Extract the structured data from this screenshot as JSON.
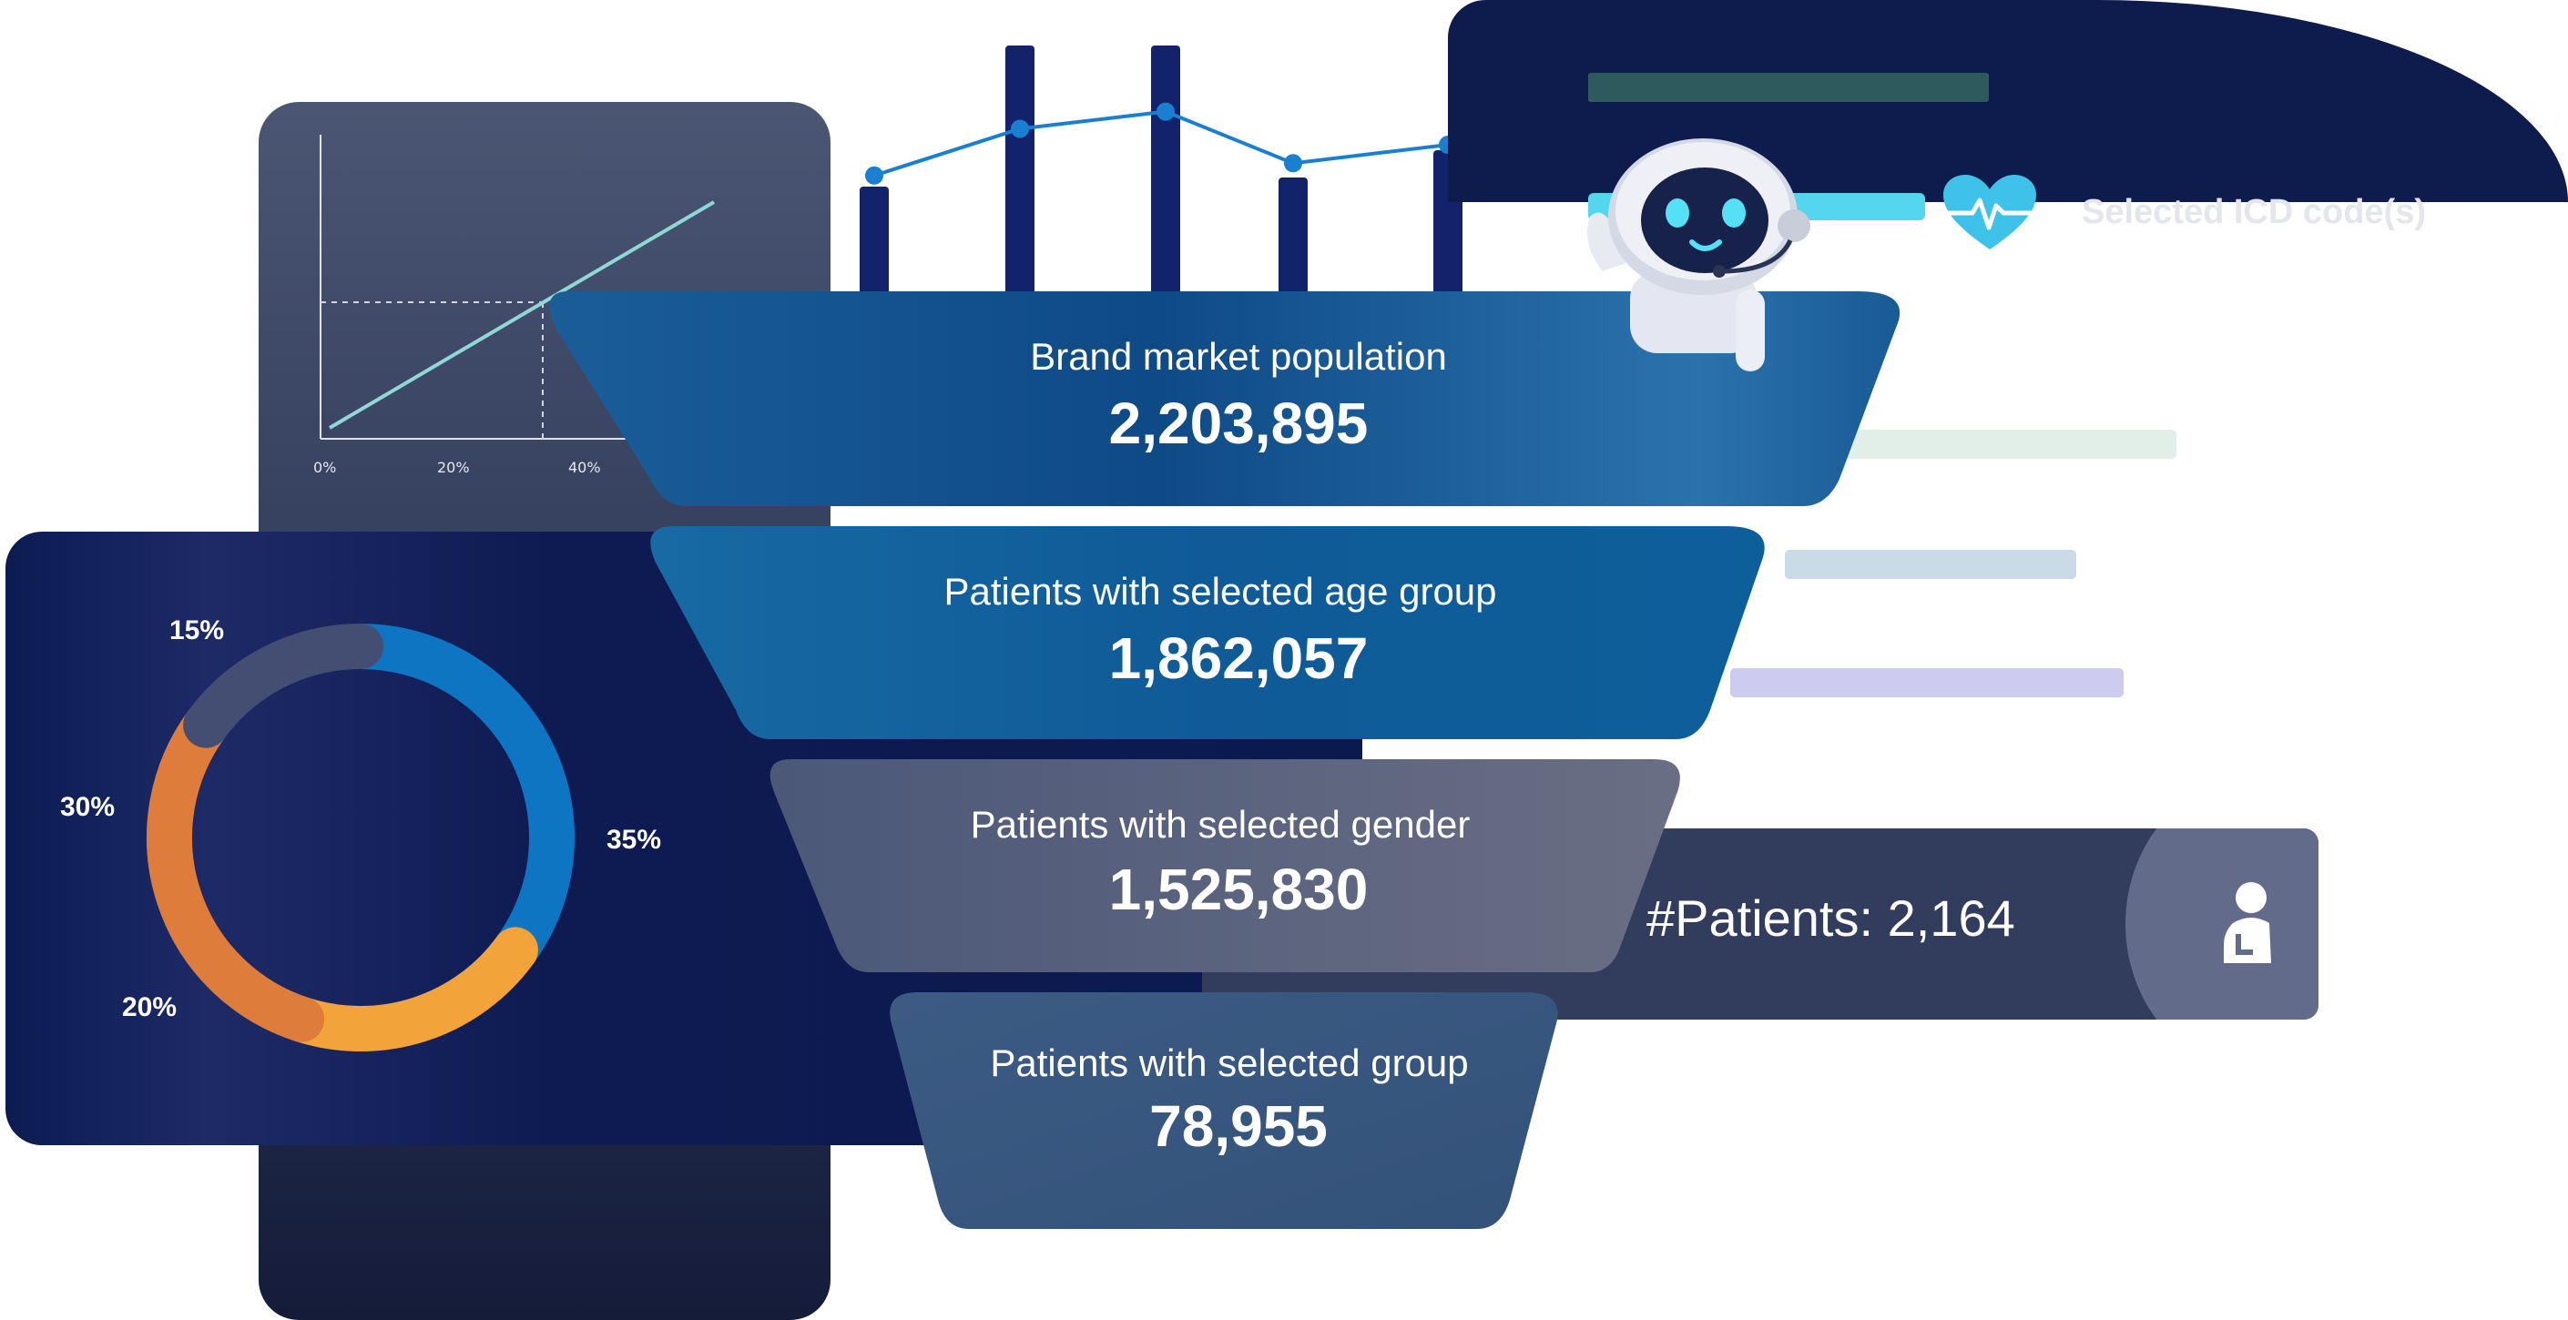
{
  "line_chart": {
    "x_ticks": [
      "0%",
      "20%",
      "40%"
    ]
  },
  "bar_chart": {
    "type": "bar",
    "values": [
      135,
      290,
      290,
      145,
      175
    ],
    "line": [
      128,
      90,
      76,
      118,
      103
    ]
  },
  "header": {
    "selected_icd_label": "Selected ICD code(s)"
  },
  "chart_data": {
    "type": "pie",
    "categories": [
      "35%",
      "20%",
      "30%",
      "15%"
    ],
    "values": [
      35,
      20,
      30,
      15
    ],
    "colors": [
      "#0e75c3",
      "#f2a43a",
      "#de7c3b",
      "#434e72"
    ]
  },
  "funnel": [
    {
      "label": "Brand market population",
      "value": "2,203,895"
    },
    {
      "label": "Patients with selected age group",
      "value": "1,862,057"
    },
    {
      "label": "Patients with selected gender",
      "value": "1,525,830"
    },
    {
      "label": "Patients with selected group",
      "value": "78,955"
    }
  ],
  "patients_card": {
    "count_text": "#Patients: 2,164",
    "icon": "patient-icon"
  },
  "colors": {
    "navy": "#0e1b4d",
    "accent_cyan": "#54d6ef",
    "heart": "#3ec2ea"
  }
}
